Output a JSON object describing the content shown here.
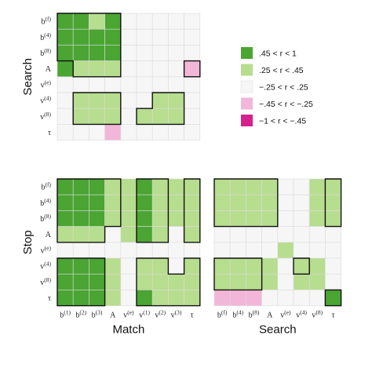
{
  "chart_data": {
    "type": "heatmap",
    "variables": [
      "b(f)",
      "b(4)",
      "b(8)",
      "A",
      "v(e)",
      "v(4)",
      "v(8)",
      "τ"
    ],
    "tick_labels": {
      "Match": [
        "b(1)",
        "b(2)",
        "b(3)",
        "A",
        "v(e)",
        "v(1)",
        "v(2)",
        "v(3)",
        "τ"
      ],
      "Search": [
        "b(f)",
        "b(4)",
        "b(8)",
        "A",
        "v(e)",
        "v(4)",
        "v(8)",
        "τ"
      ],
      "Stop": [
        "b(f)",
        "b(4)",
        "b(8)",
        "A",
        "v(e)",
        "v(4)",
        "v(8)",
        "τ"
      ]
    },
    "row_groups": [
      "Search",
      "Stop"
    ],
    "column_groups": [
      "Match",
      "Search"
    ],
    "legend": {
      "placement": "right",
      "entries": [
        {
          "label": ".45  < r <   1",
          "code": 2,
          "color": "#4aa532"
        },
        {
          "label": ".25  < r <  .45",
          "code": 1,
          "color": "#b7dd8e"
        },
        {
          "label": "−.25 < r <  .25",
          "code": 0,
          "color": "#f6f6f6"
        },
        {
          "label": "−.45 < r < −.25",
          "code": -1,
          "color": "#f2b6d8"
        },
        {
          "label": "−1   < r < −.45",
          "code": -2,
          "color": "#d6208e"
        }
      ]
    },
    "panels": [
      {
        "name": "Search × Match",
        "row_group": "Search",
        "column_group": "Match",
        "row_labels": [
          "b(f)",
          "b(4)",
          "b(8)",
          "A",
          "v(e)",
          "v(4)",
          "v(8)",
          "τ"
        ],
        "col_labels": [
          "b(1)",
          "b(2)",
          "b(3)",
          "A",
          "v(e)",
          "v(1)",
          "v(2)",
          "v(3)",
          "τ"
        ],
        "values": [
          [
            2,
            2,
            1,
            2,
            0,
            0,
            0,
            0,
            0
          ],
          [
            2,
            2,
            2,
            2,
            0,
            0,
            0,
            0,
            0
          ],
          [
            2,
            2,
            2,
            2,
            0,
            0,
            0,
            0,
            0
          ],
          [
            2,
            1,
            1,
            1,
            0,
            0,
            0,
            0,
            -1
          ],
          [
            0,
            0,
            0,
            0,
            0,
            0,
            0,
            0,
            0
          ],
          [
            0,
            1,
            1,
            1,
            0,
            0,
            1,
            1,
            0
          ],
          [
            0,
            1,
            1,
            1,
            0,
            1,
            1,
            1,
            0
          ],
          [
            0,
            0,
            0,
            -1,
            0,
            0,
            0,
            0,
            0
          ]
        ],
        "outlines": [
          [
            [
              0,
              0
            ],
            [
              4,
              0
            ],
            [
              4,
              4
            ],
            [
              1,
              4
            ],
            [
              1,
              3
            ],
            [
              0,
              3
            ]
          ],
          [
            [
              8,
              3
            ],
            [
              9,
              3
            ],
            [
              9,
              4
            ],
            [
              8,
              4
            ]
          ],
          [
            [
              1,
              5
            ],
            [
              4,
              5
            ],
            [
              4,
              7
            ],
            [
              1,
              7
            ]
          ],
          [
            [
              6,
              5
            ],
            [
              8,
              5
            ],
            [
              8,
              7
            ],
            [
              5,
              7
            ],
            [
              5,
              6
            ],
            [
              6,
              6
            ]
          ]
        ]
      },
      {
        "name": "Stop × Match",
        "row_group": "Stop",
        "column_group": "Match",
        "row_labels": [
          "b(f)",
          "b(4)",
          "b(8)",
          "A",
          "v(e)",
          "v(4)",
          "v(8)",
          "τ"
        ],
        "col_labels": [
          "b(1)",
          "b(2)",
          "b(3)",
          "A",
          "v(e)",
          "v(1)",
          "v(2)",
          "v(3)",
          "τ"
        ],
        "values": [
          [
            2,
            2,
            2,
            1,
            1,
            2,
            1,
            1,
            1
          ],
          [
            2,
            2,
            2,
            1,
            1,
            2,
            1,
            1,
            1
          ],
          [
            2,
            2,
            2,
            1,
            1,
            2,
            1,
            1,
            1
          ],
          [
            1,
            1,
            1,
            0,
            1,
            2,
            1,
            0,
            1
          ],
          [
            0,
            0,
            0,
            0,
            0,
            0,
            0,
            0,
            0
          ],
          [
            2,
            2,
            2,
            1,
            0,
            1,
            1,
            0,
            1
          ],
          [
            2,
            2,
            2,
            1,
            0,
            1,
            1,
            1,
            1
          ],
          [
            2,
            2,
            2,
            1,
            0,
            2,
            1,
            1,
            1
          ]
        ],
        "outlines": [
          [
            [
              0,
              0
            ],
            [
              4,
              0
            ],
            [
              4,
              3
            ],
            [
              3,
              3
            ],
            [
              3,
              4
            ],
            [
              0,
              4
            ]
          ],
          [
            [
              5,
              0
            ],
            [
              7,
              0
            ],
            [
              7,
              4
            ],
            [
              5,
              4
            ]
          ],
          [
            [
              8,
              0
            ],
            [
              9,
              0
            ],
            [
              9,
              4
            ],
            [
              8,
              4
            ]
          ],
          [
            [
              0,
              5
            ],
            [
              3,
              5
            ],
            [
              3,
              8
            ],
            [
              0,
              8
            ]
          ],
          [
            [
              5,
              5
            ],
            [
              7,
              5
            ],
            [
              7,
              6
            ],
            [
              8,
              6
            ],
            [
              8,
              5
            ],
            [
              9,
              5
            ],
            [
              9,
              8
            ],
            [
              5,
              8
            ]
          ]
        ]
      },
      {
        "name": "Stop × Search",
        "row_group": "Stop",
        "column_group": "Search",
        "row_labels": [
          "b(f)",
          "b(4)",
          "b(8)",
          "A",
          "v(e)",
          "v(4)",
          "v(8)",
          "τ"
        ],
        "col_labels": [
          "b(f)",
          "b(4)",
          "b(8)",
          "A",
          "v(e)",
          "v(4)",
          "v(8)",
          "τ"
        ],
        "values": [
          [
            1,
            1,
            1,
            1,
            0,
            0,
            1,
            1
          ],
          [
            1,
            1,
            1,
            1,
            0,
            0,
            1,
            1
          ],
          [
            1,
            1,
            1,
            1,
            0,
            0,
            1,
            1
          ],
          [
            0,
            0,
            0,
            0,
            0,
            0,
            0,
            0
          ],
          [
            0,
            0,
            0,
            0,
            1,
            0,
            0,
            0
          ],
          [
            1,
            1,
            1,
            1,
            0,
            1,
            1,
            0
          ],
          [
            1,
            1,
            1,
            1,
            0,
            1,
            1,
            0
          ],
          [
            -1,
            -1,
            -1,
            0,
            0,
            0,
            0,
            2
          ]
        ],
        "outlines": [
          [
            [
              0,
              0
            ],
            [
              4,
              0
            ],
            [
              4,
              3
            ],
            [
              0,
              3
            ]
          ],
          [
            [
              7,
              0
            ],
            [
              8,
              0
            ],
            [
              8,
              3
            ],
            [
              7,
              3
            ]
          ],
          [
            [
              0,
              5
            ],
            [
              3,
              5
            ],
            [
              3,
              7
            ],
            [
              0,
              7
            ]
          ],
          [
            [
              5,
              5
            ],
            [
              6,
              5
            ],
            [
              6,
              6
            ],
            [
              5,
              6
            ]
          ],
          [
            [
              7,
              7
            ],
            [
              8,
              7
            ],
            [
              8,
              8
            ],
            [
              7,
              8
            ]
          ]
        ]
      }
    ]
  }
}
